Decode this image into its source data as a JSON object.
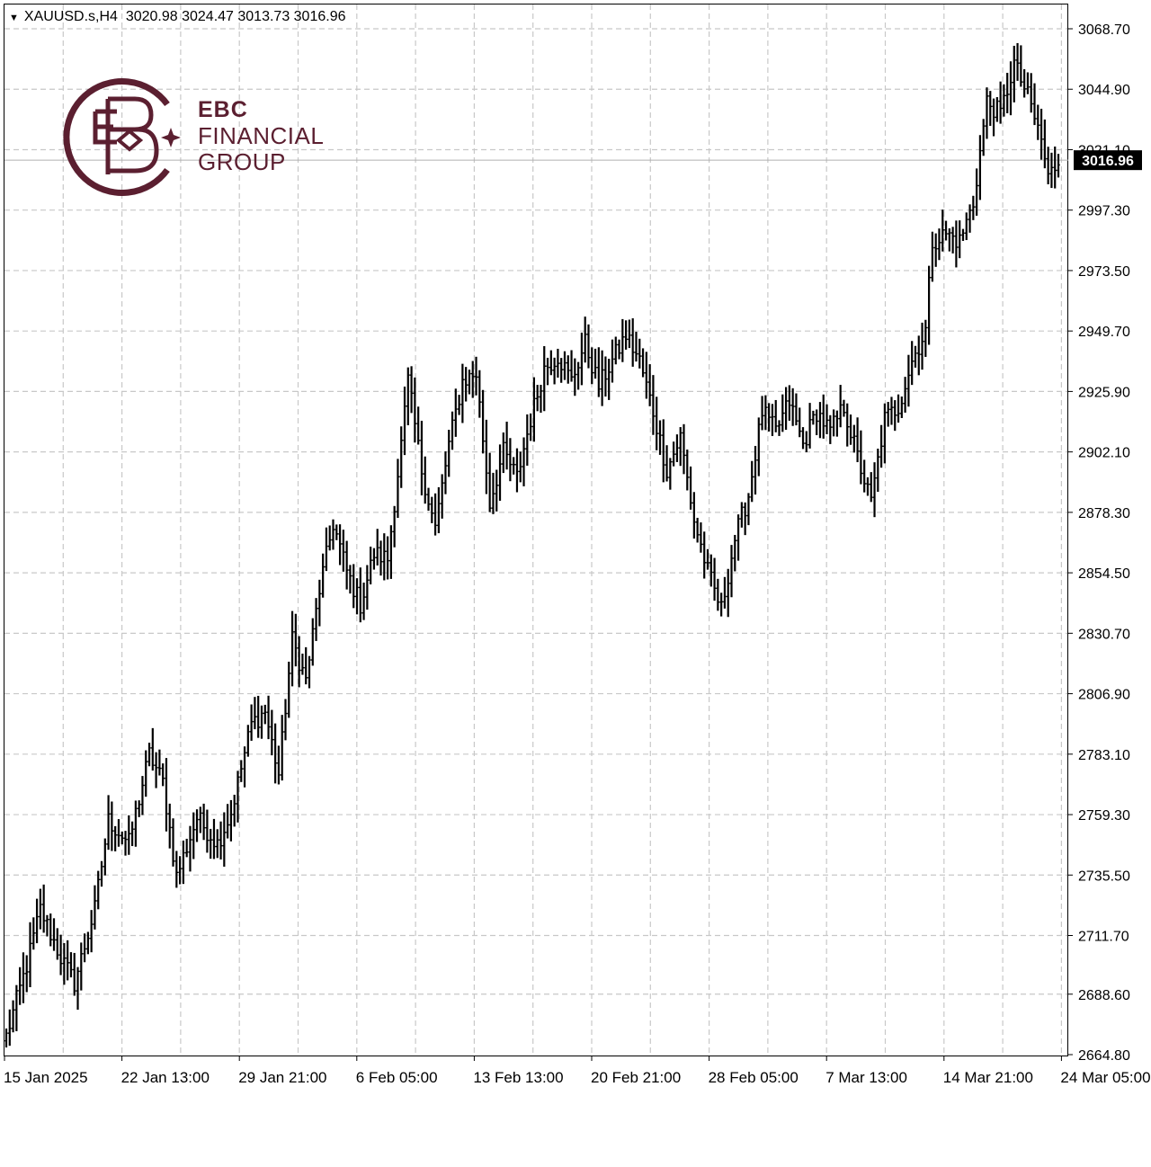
{
  "header": {
    "symbol": "XAUUSD.s,H4",
    "ohlc": "3020.98 3024.47 3013.73 3016.96"
  },
  "logo": {
    "line1": "EBC",
    "line2": "FINANCIAL",
    "line3": "GROUP",
    "color": "#5b1f30"
  },
  "chart_data": {
    "type": "bar",
    "title": "",
    "style": "ohlc-bars",
    "timeframe": "H4",
    "current_price": 3016.96,
    "current_price_label": "3016.96",
    "ylim": [
      2664.8,
      3080
    ],
    "y_ticks": [
      "2664.80",
      "2688.60",
      "2711.70",
      "2735.50",
      "2759.30",
      "2783.10",
      "2806.90",
      "2830.70",
      "2854.50",
      "2878.30",
      "2902.10",
      "2925.90",
      "2949.70",
      "2973.50",
      "2997.30",
      "3021.10",
      "3044.90",
      "3068.70"
    ],
    "x_ticks": [
      "15 Jan 2025",
      "22 Jan 13:00",
      "29 Jan 21:00",
      "6 Feb 05:00",
      "13 Feb 13:00",
      "20 Feb 21:00",
      "28 Feb 05:00",
      "7 Mar 13:00",
      "14 Mar 21:00",
      "24 Mar 05:00"
    ],
    "grid": true,
    "colors": {
      "bars": "#000000",
      "grid": "#c8c8c8",
      "price_line": "#b0b0b0",
      "price_box": "#000000"
    },
    "keypoints": [
      [
        0,
        2672
      ],
      [
        6,
        2700
      ],
      [
        10,
        2722
      ],
      [
        16,
        2703
      ],
      [
        20,
        2693
      ],
      [
        26,
        2722
      ],
      [
        30,
        2757
      ],
      [
        36,
        2748
      ],
      [
        42,
        2783
      ],
      [
        46,
        2772
      ],
      [
        50,
        2735
      ],
      [
        56,
        2758
      ],
      [
        62,
        2748
      ],
      [
        66,
        2760
      ],
      [
        72,
        2795
      ],
      [
        76,
        2800
      ],
      [
        80,
        2775
      ],
      [
        84,
        2828
      ],
      [
        88,
        2812
      ],
      [
        92,
        2848
      ],
      [
        96,
        2874
      ],
      [
        100,
        2855
      ],
      [
        104,
        2842
      ],
      [
        108,
        2862
      ],
      [
        112,
        2860
      ],
      [
        116,
        2905
      ],
      [
        118,
        2930
      ],
      [
        122,
        2895
      ],
      [
        126,
        2872
      ],
      [
        130,
        2905
      ],
      [
        134,
        2930
      ],
      [
        138,
        2933
      ],
      [
        142,
        2882
      ],
      [
        146,
        2902
      ],
      [
        150,
        2892
      ],
      [
        154,
        2915
      ],
      [
        158,
        2935
      ],
      [
        162,
        2940
      ],
      [
        166,
        2930
      ],
      [
        170,
        2945
      ],
      [
        174,
        2928
      ],
      [
        178,
        2938
      ],
      [
        182,
        2948
      ],
      [
        186,
        2938
      ],
      [
        190,
        2918
      ],
      [
        194,
        2895
      ],
      [
        198,
        2908
      ],
      [
        202,
        2875
      ],
      [
        206,
        2855
      ],
      [
        210,
        2840
      ],
      [
        214,
        2868
      ],
      [
        218,
        2885
      ],
      [
        222,
        2918
      ],
      [
        226,
        2910
      ],
      [
        230,
        2922
      ],
      [
        234,
        2905
      ],
      [
        238,
        2918
      ],
      [
        242,
        2910
      ],
      [
        246,
        2920
      ],
      [
        250,
        2900
      ],
      [
        254,
        2882
      ],
      [
        258,
        2915
      ],
      [
        262,
        2920
      ],
      [
        266,
        2938
      ],
      [
        270,
        2950
      ],
      [
        272,
        2985
      ],
      [
        276,
        2988
      ],
      [
        280,
        2985
      ],
      [
        284,
        3000
      ],
      [
        288,
        3040
      ],
      [
        292,
        3035
      ],
      [
        296,
        3055
      ],
      [
        300,
        3042
      ],
      [
        304,
        3025
      ],
      [
        306,
        3010
      ],
      [
        309,
        3017
      ]
    ]
  }
}
